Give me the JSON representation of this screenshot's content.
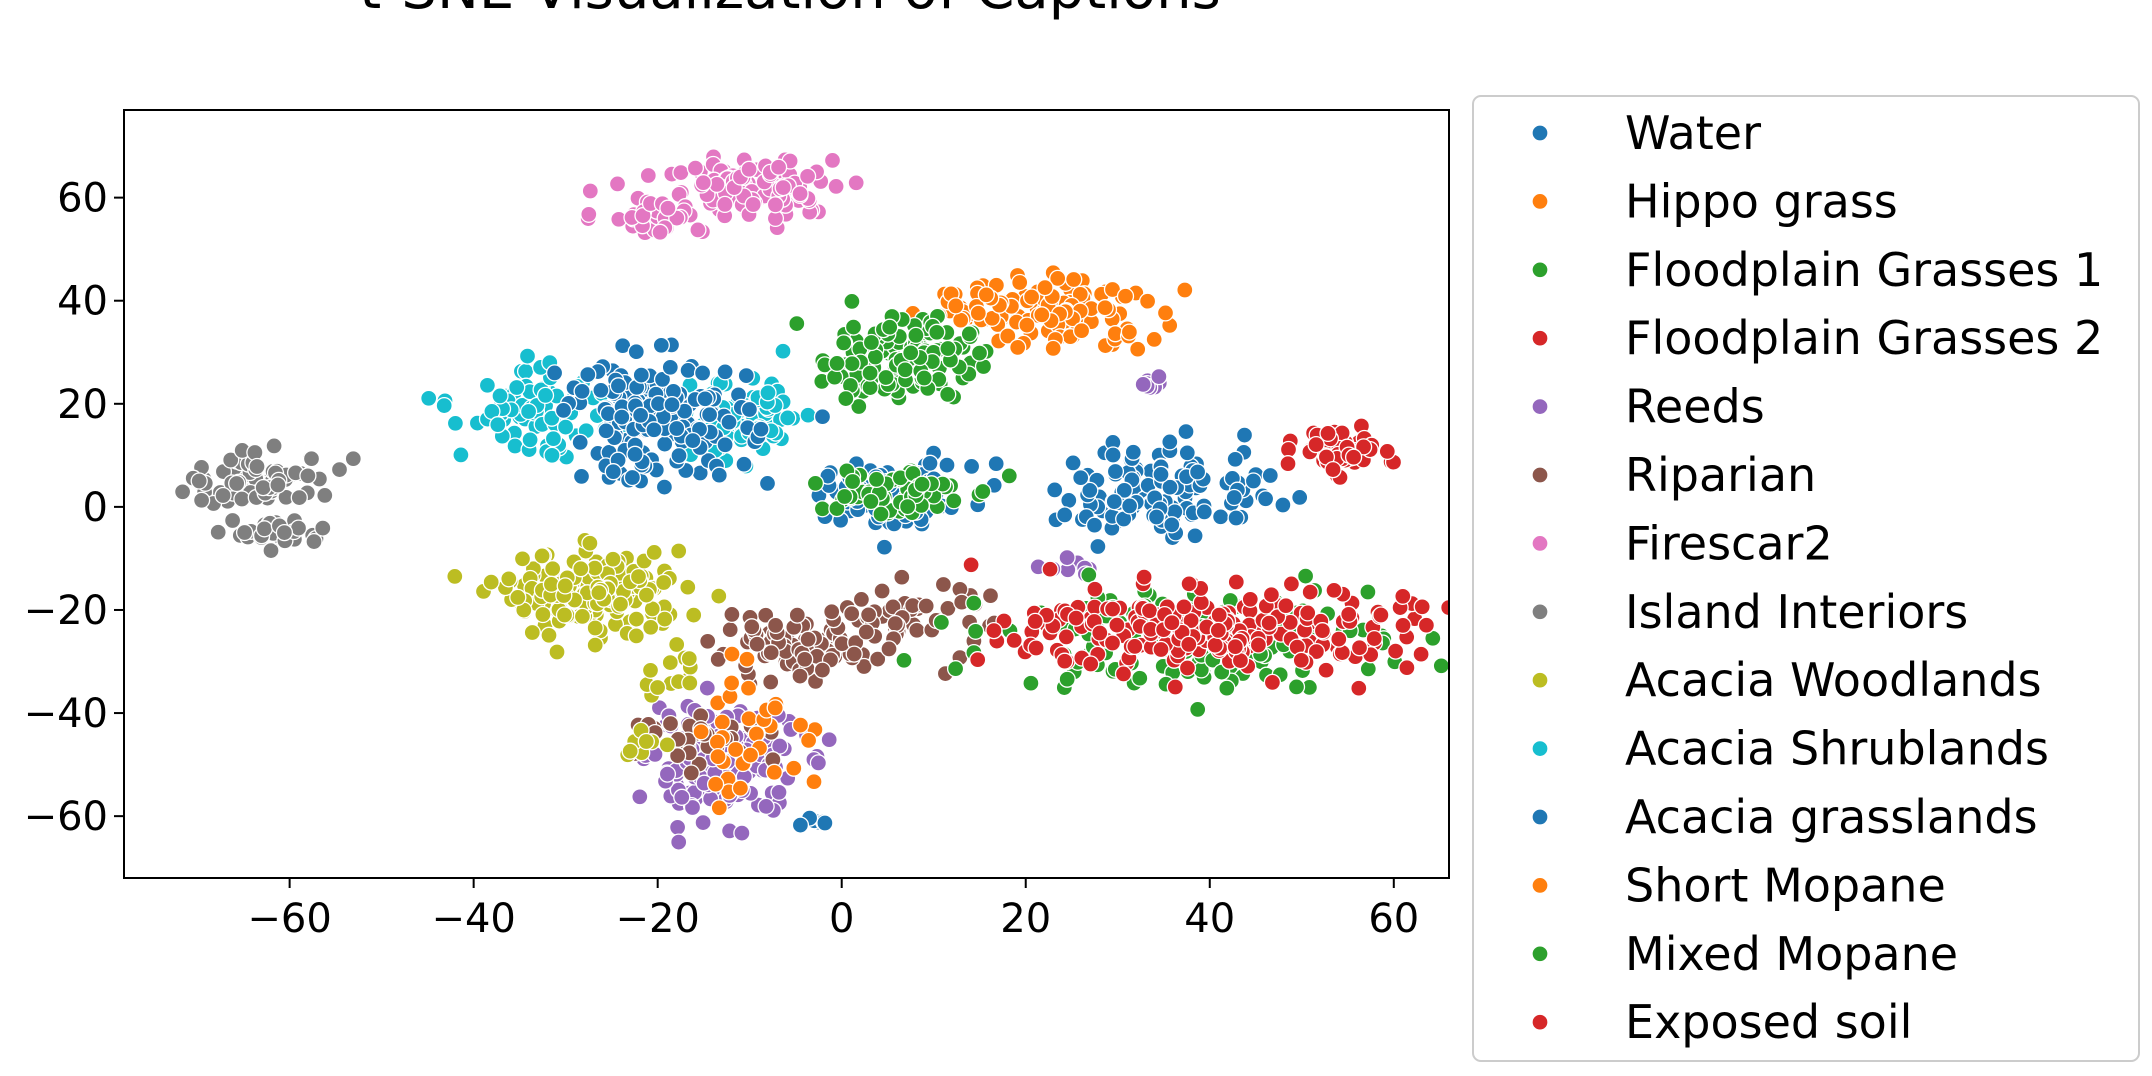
{
  "chart_data": {
    "type": "scatter",
    "title": "t-SNE Visualization of Captions",
    "xlabel": "",
    "ylabel": "",
    "xlim": [
      -78,
      66
    ],
    "ylim": [
      -72,
      77
    ],
    "xticks": [
      -60,
      -40,
      -20,
      0,
      20,
      40,
      60
    ],
    "yticks": [
      60,
      40,
      20,
      0,
      -20,
      -40,
      -60
    ],
    "xtick_labels": [
      "−60",
      "−40",
      "−20",
      "0",
      "20",
      "40",
      "60"
    ],
    "ytick_labels": [
      "60",
      "40",
      "20",
      "0",
      "−20",
      "−40",
      "−60"
    ],
    "grid": false,
    "legend_position": "right (outside)",
    "series": [
      {
        "name": "Water",
        "color": "#1f77b4",
        "clusters": [
          {
            "cx": 6,
            "cy": 3,
            "sx": 4,
            "sy": 2.5,
            "n": 55
          }
        ]
      },
      {
        "name": "Hippo grass",
        "color": "#ff7f0e",
        "clusters": [
          {
            "cx": 24,
            "cy": 38,
            "sx": 5,
            "sy": 3.5,
            "n": 110
          },
          {
            "cx": 14,
            "cy": 39,
            "sx": 2,
            "sy": 2,
            "n": 18
          }
        ]
      },
      {
        "name": "Floodplain Grasses 1",
        "color": "#2ca02c",
        "clusters": [
          {
            "cx": 6,
            "cy": 29,
            "sx": 4,
            "sy": 4,
            "n": 150
          }
        ]
      },
      {
        "name": "Floodplain Grasses 2",
        "color": "#d62728",
        "clusters": [
          {
            "cx": 54,
            "cy": 11,
            "sx": 2.2,
            "sy": 2,
            "n": 70
          }
        ]
      },
      {
        "name": "Reeds",
        "color": "#9467bd",
        "clusters": [
          {
            "cx": -13,
            "cy": -50,
            "sx": 4,
            "sy": 5,
            "n": 180
          },
          {
            "cx": 33,
            "cy": 24,
            "sx": 1,
            "sy": 1,
            "n": 8
          },
          {
            "cx": 26,
            "cy": -12,
            "sx": 2,
            "sy": 1,
            "n": 8
          }
        ]
      },
      {
        "name": "Riparian",
        "color": "#8c564b",
        "clusters": [
          {
            "cx": -6,
            "cy": -28,
            "sx": 4,
            "sy": 2.5,
            "n": 80
          },
          {
            "cx": 6,
            "cy": -22,
            "sx": 5,
            "sy": 4,
            "n": 60
          },
          {
            "cx": -15,
            "cy": -45,
            "sx": 4,
            "sy": 2,
            "n": 30
          }
        ]
      },
      {
        "name": "Firescar2",
        "color": "#e377c2",
        "clusters": [
          {
            "cx": -9,
            "cy": 62,
            "sx": 5,
            "sy": 3,
            "n": 110
          },
          {
            "cx": -21,
            "cy": 57,
            "sx": 3,
            "sy": 2,
            "n": 40
          }
        ]
      },
      {
        "name": "Island Interiors",
        "color": "#7f7f7f",
        "clusters": [
          {
            "cx": -63,
            "cy": 5,
            "sx": 4,
            "sy": 2.5,
            "n": 80
          },
          {
            "cx": -61,
            "cy": -5,
            "sx": 2.5,
            "sy": 1.5,
            "n": 30
          }
        ]
      },
      {
        "name": "Acacia Woodlands",
        "color": "#bcbd22",
        "clusters": [
          {
            "cx": -27,
            "cy": -17,
            "sx": 5,
            "sy": 4,
            "n": 170
          },
          {
            "cx": -19,
            "cy": -33,
            "sx": 1.5,
            "sy": 2,
            "n": 12
          },
          {
            "cx": -21,
            "cy": -46,
            "sx": 2,
            "sy": 2,
            "n": 8
          }
        ]
      },
      {
        "name": "Acacia Shrublands",
        "color": "#17becf",
        "clusters": [
          {
            "cx": -33,
            "cy": 18,
            "sx": 4,
            "sy": 4,
            "n": 90
          },
          {
            "cx": -10,
            "cy": 17,
            "sx": 3,
            "sy": 4,
            "n": 70
          }
        ]
      },
      {
        "name": "Acacia grasslands",
        "color": "#1f77b4",
        "clusters": [
          {
            "cx": -20,
            "cy": 17,
            "sx": 5,
            "sy": 6,
            "n": 170
          },
          {
            "cx": 35,
            "cy": 3,
            "sx": 6,
            "sy": 4.5,
            "n": 130
          },
          {
            "cx": 6,
            "cy": 1,
            "sx": 4,
            "sy": 3,
            "n": 60
          },
          {
            "cx": -3,
            "cy": -61,
            "sx": 1,
            "sy": 0.7,
            "n": 6
          }
        ]
      },
      {
        "name": "Short Mopane",
        "color": "#ff7f0e",
        "clusters": [
          {
            "cx": -10,
            "cy": -44,
            "sx": 4,
            "sy": 6,
            "n": 35
          }
        ]
      },
      {
        "name": "Mixed Mopane",
        "color": "#2ca02c",
        "clusters": [
          {
            "cx": 38,
            "cy": -25,
            "sx": 10,
            "sy": 5,
            "n": 170
          },
          {
            "cx": 5,
            "cy": 3,
            "sx": 4,
            "sy": 2.5,
            "n": 60
          }
        ]
      },
      {
        "name": "Exposed soil",
        "color": "#d62728",
        "clusters": [
          {
            "cx": 40,
            "cy": -24,
            "sx": 11,
            "sy": 4,
            "n": 230
          }
        ]
      }
    ]
  }
}
